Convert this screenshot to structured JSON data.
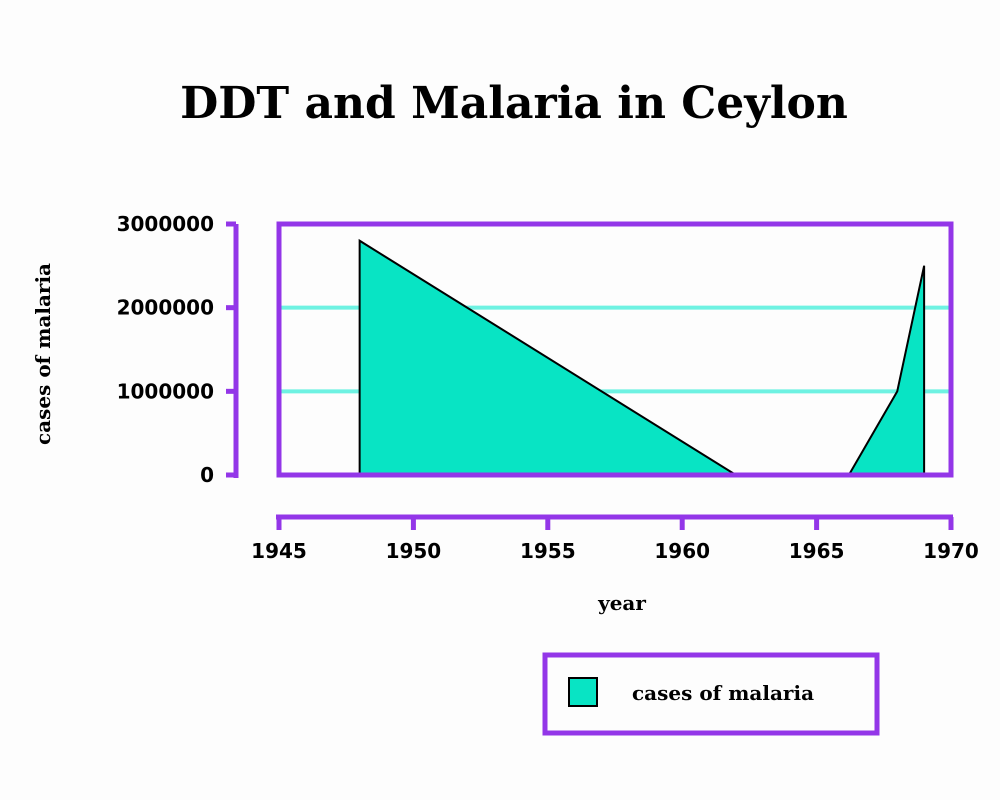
{
  "chart_data": {
    "type": "area",
    "title": "DDT and Malaria in Ceylon",
    "xlabel": "year",
    "ylabel": "cases of malaria",
    "xlim": [
      1945,
      1970
    ],
    "ylim": [
      0,
      3000000
    ],
    "xticks": [
      "1945",
      "1950",
      "1955",
      "1960",
      "1965",
      "1970"
    ],
    "yticks": [
      "0",
      "1000000",
      "2000000",
      "3000000"
    ],
    "grid": true,
    "legend_position": "bottom-right",
    "series": [
      {
        "name": "cases of malaria",
        "color": "#08e4c4",
        "points": [
          [
            1948,
            2800000
          ],
          [
            1962,
            0
          ],
          [
            1966.2,
            0
          ],
          [
            1968,
            1000000
          ],
          [
            1969,
            2500000
          ]
        ]
      }
    ]
  },
  "colors": {
    "frame": "#9336e8",
    "grid": "#6ef2e2",
    "area_fill": "#08e4c4",
    "outline": "#000000"
  }
}
